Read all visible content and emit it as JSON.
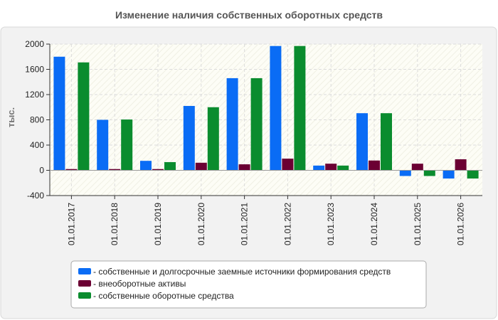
{
  "chart_data": {
    "type": "bar",
    "title": "Изменение наличия собственных оборотных средств",
    "ylabel": "тыс.",
    "xlabel": "",
    "categories": [
      "01.01.2017",
      "01.01.2018",
      "01.01.2019",
      "01.01.2020",
      "01.01.2021",
      "01.01.2022",
      "01.01.2023",
      "01.01.2024",
      "01.01.2025",
      "01.01.2026"
    ],
    "ylim": [
      -400,
      2000
    ],
    "yticks": [
      -400,
      0,
      400,
      800,
      1200,
      1600,
      2000
    ],
    "grid": true,
    "legend_position": "bottom",
    "series": [
      {
        "name": "- собственные и долгосрочные заемные источники формирования средств",
        "color": "#0a6cf5",
        "values": [
          1800,
          800,
          150,
          1020,
          1460,
          1970,
          75,
          905,
          -90,
          -130
        ]
      },
      {
        "name": "- внеоборотные активы",
        "color": "#6b0033",
        "values": [
          20,
          20,
          20,
          120,
          95,
          185,
          105,
          155,
          105,
          175
        ]
      },
      {
        "name": "- собственные оборотные средства",
        "color": "#0a8c2e",
        "values": [
          1710,
          805,
          130,
          1000,
          1460,
          1970,
          75,
          905,
          -90,
          -130
        ]
      }
    ]
  }
}
